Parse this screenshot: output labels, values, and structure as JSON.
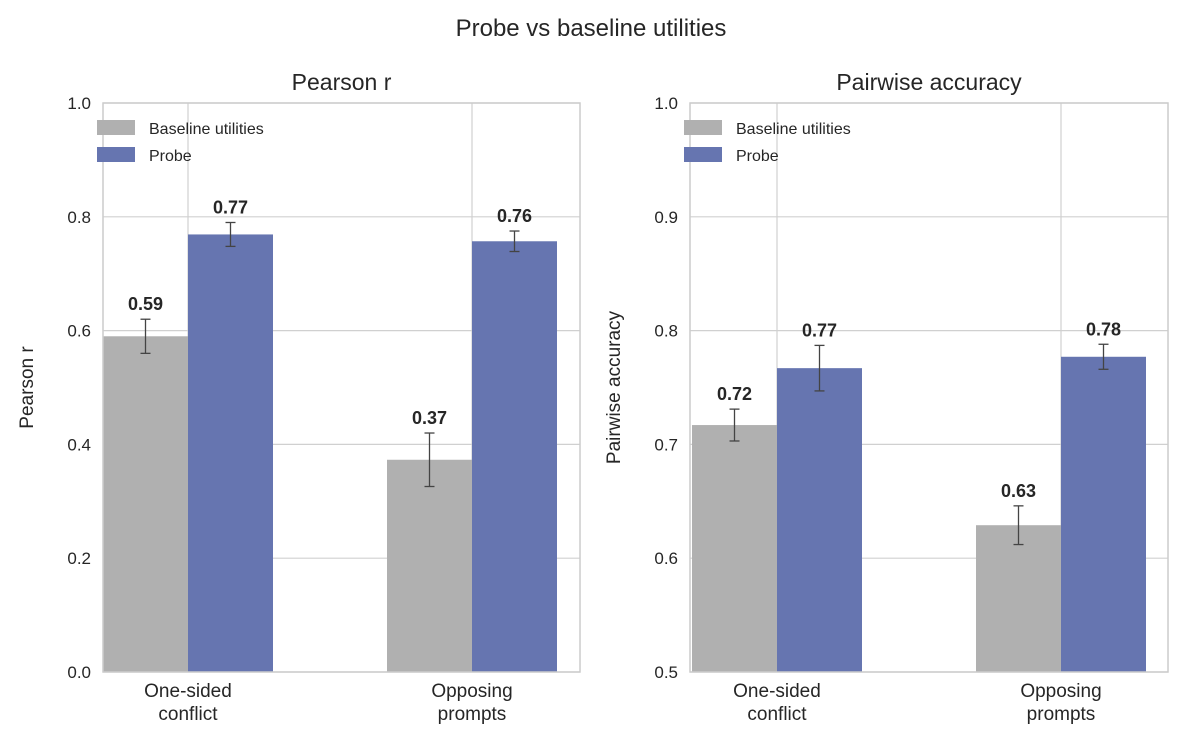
{
  "figure": {
    "title": "Probe vs baseline utilities"
  },
  "colors": {
    "baseline": "#b0b0b0",
    "probe": "#6675b0",
    "grid": "#d0d0d0",
    "frame": "#cccccc",
    "errorbar": "#444444",
    "text": "#262626"
  },
  "chart_data": [
    {
      "type": "bar",
      "title": "Pearson r",
      "xlabel": "",
      "ylabel": "Pearson r",
      "ylim": [
        0,
        1.0
      ],
      "yticks": [
        "0.0",
        "0.2",
        "0.4",
        "0.6",
        "0.8",
        "1.0"
      ],
      "categories": [
        "One-sided conflict",
        "Opposing prompts"
      ],
      "category_lines": [
        [
          "One-sided",
          "conflict"
        ],
        [
          "Opposing",
          "prompts"
        ]
      ],
      "legend": {
        "position": "upper-left",
        "entries": [
          "Baseline utilities",
          "Probe"
        ]
      },
      "grid": true,
      "series": [
        {
          "name": "Baseline utilities",
          "values": [
            0.59,
            0.373
          ],
          "errors": [
            0.03,
            0.047
          ],
          "labels": [
            "0.59",
            "0.37"
          ]
        },
        {
          "name": "Probe",
          "values": [
            0.769,
            0.757
          ],
          "errors": [
            0.021,
            0.018
          ],
          "labels": [
            "0.77",
            "0.76"
          ]
        }
      ]
    },
    {
      "type": "bar",
      "title": "Pairwise accuracy",
      "xlabel": "",
      "ylabel": "Pairwise accuracy",
      "ylim": [
        0.5,
        1.0
      ],
      "yticks": [
        "0.5",
        "0.6",
        "0.7",
        "0.8",
        "0.9",
        "1.0"
      ],
      "categories": [
        "One-sided conflict",
        "Opposing prompts"
      ],
      "category_lines": [
        [
          "One-sided",
          "conflict"
        ],
        [
          "Opposing",
          "prompts"
        ]
      ],
      "legend": {
        "position": "upper-left",
        "entries": [
          "Baseline utilities",
          "Probe"
        ]
      },
      "grid": true,
      "series": [
        {
          "name": "Baseline utilities",
          "values": [
            0.717,
            0.629
          ],
          "errors": [
            0.014,
            0.017
          ],
          "labels": [
            "0.72",
            "0.63"
          ]
        },
        {
          "name": "Probe",
          "values": [
            0.767,
            0.777
          ],
          "errors": [
            0.02,
            0.011
          ],
          "labels": [
            "0.77",
            "0.78"
          ]
        }
      ]
    }
  ]
}
